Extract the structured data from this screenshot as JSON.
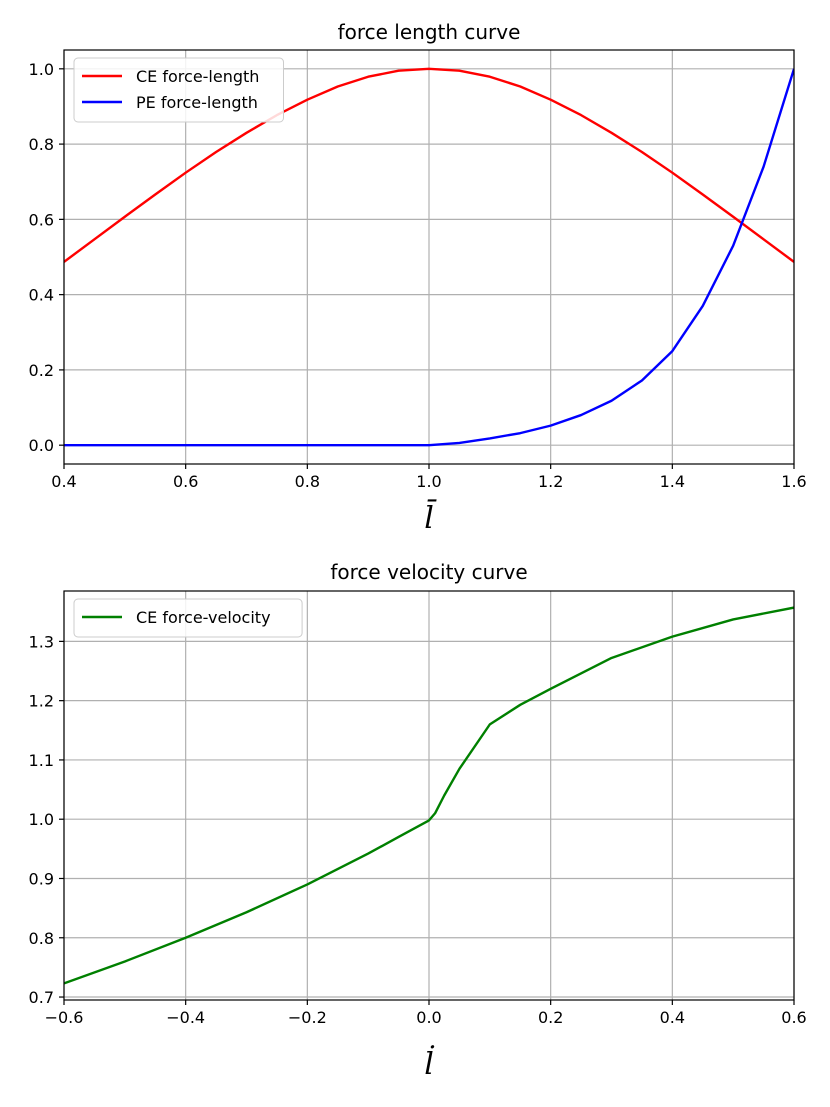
{
  "chart_data": [
    {
      "type": "line",
      "title": "force length curve",
      "xlabel": "l̄",
      "ylabel": "",
      "xlim": [
        0.4,
        1.6
      ],
      "ylim": [
        -0.05,
        1.05
      ],
      "xticks": [
        0.4,
        0.6,
        0.8,
        1.0,
        1.2,
        1.4,
        1.6
      ],
      "xtick_labels": [
        "0.4",
        "0.6",
        "0.8",
        "1.0",
        "1.2",
        "1.4",
        "1.6"
      ],
      "yticks": [
        0.0,
        0.2,
        0.4,
        0.6,
        0.8,
        1.0
      ],
      "ytick_labels": [
        "0.0",
        "0.2",
        "0.4",
        "0.6",
        "0.8",
        "1.0"
      ],
      "grid": true,
      "legend_position": "top-left",
      "series": [
        {
          "name": "CE force-length",
          "color": "#ff0000",
          "x": [
            0.4,
            0.45,
            0.5,
            0.55,
            0.6,
            0.65,
            0.7,
            0.75,
            0.8,
            0.85,
            0.9,
            0.95,
            1.0,
            1.05,
            1.1,
            1.15,
            1.2,
            1.25,
            1.3,
            1.35,
            1.4,
            1.45,
            1.5,
            1.55,
            1.6
          ],
          "y": [
            0.487,
            0.547,
            0.607,
            0.666,
            0.724,
            0.779,
            0.83,
            0.877,
            0.918,
            0.953,
            0.979,
            0.995,
            1.0,
            0.995,
            0.979,
            0.953,
            0.918,
            0.877,
            0.83,
            0.779,
            0.724,
            0.666,
            0.607,
            0.547,
            0.487
          ]
        },
        {
          "name": "PE force-length",
          "color": "#0000ff",
          "x": [
            0.4,
            0.6,
            0.8,
            1.0,
            1.05,
            1.1,
            1.15,
            1.2,
            1.25,
            1.3,
            1.35,
            1.4,
            1.45,
            1.5,
            1.55,
            1.6
          ],
          "y": [
            0.0,
            0.0,
            0.0,
            0.0,
            0.006,
            0.018,
            0.032,
            0.052,
            0.08,
            0.118,
            0.172,
            0.25,
            0.37,
            0.53,
            0.74,
            1.0
          ]
        }
      ]
    },
    {
      "type": "line",
      "title": "force velocity curve",
      "xlabel": "l̇",
      "ylabel": "",
      "xlim": [
        -0.6,
        0.6
      ],
      "ylim": [
        0.695,
        1.385
      ],
      "xticks": [
        -0.6,
        -0.4,
        -0.2,
        0.0,
        0.2,
        0.4,
        0.6
      ],
      "xtick_labels": [
        "−0.6",
        "−0.4",
        "−0.2",
        "0.0",
        "0.2",
        "0.4",
        "0.6"
      ],
      "yticks": [
        0.7,
        0.8,
        0.9,
        1.0,
        1.1,
        1.2,
        1.3
      ],
      "ytick_labels": [
        "0.7",
        "0.8",
        "0.9",
        "1.0",
        "1.1",
        "1.2",
        "1.3"
      ],
      "grid": true,
      "legend_position": "top-left",
      "series": [
        {
          "name": "CE force-velocity",
          "color": "#008000",
          "x": [
            -0.6,
            -0.5,
            -0.4,
            -0.3,
            -0.2,
            -0.1,
            -0.05,
            0.0,
            0.01,
            0.025,
            0.05,
            0.1,
            0.15,
            0.2,
            0.3,
            0.4,
            0.5,
            0.6
          ],
          "y": [
            0.723,
            0.76,
            0.8,
            0.843,
            0.89,
            0.942,
            0.97,
            0.998,
            1.01,
            1.04,
            1.085,
            1.16,
            1.193,
            1.22,
            1.272,
            1.308,
            1.337,
            1.357
          ]
        }
      ]
    }
  ]
}
